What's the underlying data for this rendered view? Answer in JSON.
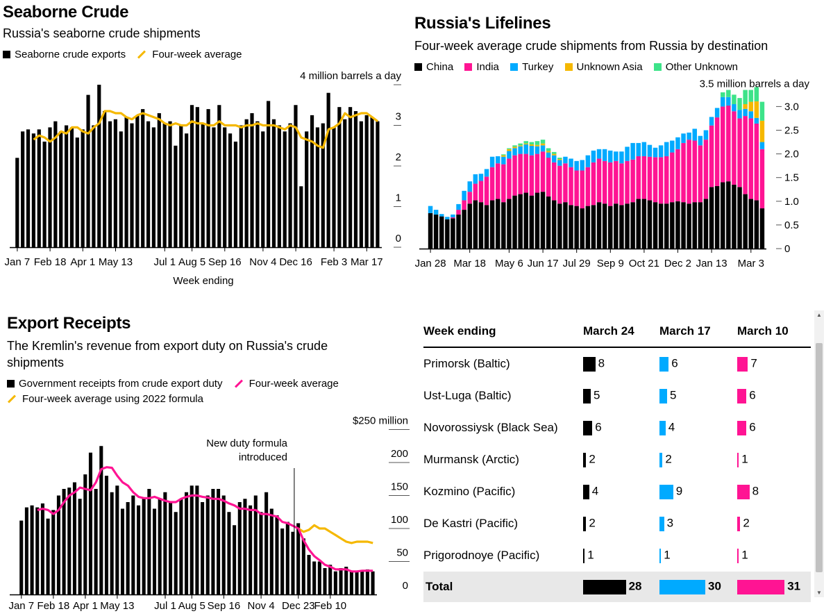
{
  "colors": {
    "black": "#000000",
    "yellow": "#f5b800",
    "magenta": "#ff1493",
    "blue": "#00aaff",
    "unknown_asia": "#f5b800",
    "other_unknown": "#3de389",
    "axis": "#555555"
  },
  "seaborne": {
    "title": "Seaborne Crude",
    "subtitle": "Russia's seaborne crude shipments",
    "legend_bar": "Seaborne crude exports",
    "legend_line": "Four-week average",
    "xlabel": "Week ending"
  },
  "lifelines": {
    "title": "Russia's Lifelines",
    "subtitle": "Four-week average crude shipments from Russia by destination",
    "legend": [
      "China",
      "India",
      "Turkey",
      "Unknown Asia",
      "Other Unknown"
    ]
  },
  "receipts": {
    "title": "Export Receipts",
    "subtitle": "The Kremlin's revenue from export duty on Russia's crude shipments",
    "legend_bar": "Government receipts from crude export duty",
    "legend_line1": "Four-week average",
    "legend_line2": "Four-week average using 2022 formula",
    "annotation": [
      "New duty formula",
      "introduced"
    ]
  },
  "chart_data": [
    {
      "type": "bar",
      "title": "Seaborne Crude",
      "subtitle": "Russia's seaborne crude shipments",
      "xlabel": "Week ending",
      "ylabel": "million barrels a day",
      "ylim": [
        0,
        4
      ],
      "ytick_values": [
        0,
        1,
        2,
        3,
        4
      ],
      "ytick_labels": [
        "0",
        "1",
        "2",
        "3",
        "4 million barrels a day"
      ],
      "xtick_labels": [
        "Jan 7",
        "Feb 18",
        "Apr 1",
        "May 13",
        "Jul 1",
        "Aug 5",
        "Sep 16",
        "Nov 4",
        "Dec 16",
        "Feb 3",
        "Mar 17"
      ],
      "xtick_index": [
        0,
        6,
        12,
        18,
        27,
        32,
        38,
        45,
        51,
        58,
        64
      ],
      "series": [
        {
          "name": "Seaborne crude exports",
          "values": [
            2.2,
            2.85,
            2.9,
            2.8,
            2.9,
            2.6,
            2.95,
            3.1,
            2.85,
            3.0,
            2.95,
            2.7,
            2.9,
            3.75,
            3.0,
            4.0,
            3.35,
            3.1,
            3.15,
            2.85,
            3.2,
            3.05,
            3.25,
            3.4,
            3.1,
            2.95,
            3.3,
            3.05,
            3.1,
            2.5,
            3.0,
            2.8,
            3.5,
            3.45,
            3.05,
            3.4,
            2.95,
            3.5,
            2.95,
            2.8,
            2.6,
            3.0,
            3.15,
            3.3,
            3.1,
            2.85,
            3.6,
            3.15,
            3.0,
            2.85,
            3.05,
            3.5,
            1.5,
            2.85,
            3.25,
            2.95,
            3.05,
            3.8,
            2.95,
            3.45,
            3.15,
            3.45,
            3.35,
            3.1,
            3.25,
            3.2,
            3.1
          ]
        },
        {
          "name": "Four-week average",
          "values": [
            null,
            null,
            null,
            2.65,
            2.75,
            2.7,
            2.6,
            2.7,
            2.85,
            2.8,
            2.95,
            2.95,
            2.85,
            2.8,
            2.95,
            3.05,
            3.35,
            3.35,
            3.3,
            3.3,
            3.2,
            3.15,
            3.25,
            3.3,
            3.25,
            3.2,
            3.15,
            3.05,
            3.0,
            3.05,
            3.0,
            3.0,
            3.1,
            3.05,
            3.05,
            3.0,
            3.0,
            3.1,
            3.0,
            3.0,
            3.0,
            2.95,
            3.0,
            3.0,
            3.05,
            3.0,
            3.0,
            3.0,
            2.95,
            2.9,
            3.0,
            2.95,
            2.7,
            2.65,
            2.6,
            2.5,
            2.45,
            2.9,
            2.95,
            3.05,
            3.3,
            3.2,
            3.25,
            3.3,
            3.3,
            3.2,
            3.1
          ]
        }
      ]
    },
    {
      "type": "bar",
      "stacked": true,
      "title": "Russia's Lifelines",
      "subtitle": "Four-week average crude shipments from Russia by destination",
      "ylabel": "million barrels a day",
      "ylim": [
        0,
        3.5
      ],
      "ytick_values": [
        0,
        0.5,
        1.0,
        1.5,
        2.0,
        2.5,
        3.0,
        3.5
      ],
      "ytick_labels": [
        "0",
        "0.5",
        "1.0",
        "1.5",
        "2.0",
        "2.5",
        "3.0",
        "3.5 million barrels a day"
      ],
      "xtick_labels": [
        "Jan 28",
        "Mar 18",
        "May 6",
        "Jun 17",
        "Jul 29",
        "Sep 9",
        "Oct 21",
        "Dec 2",
        "Jan 13",
        "Mar 3"
      ],
      "xtick_index": [
        0,
        7,
        14,
        20,
        26,
        32,
        38,
        44,
        50,
        57
      ],
      "series": [
        {
          "name": "China",
          "values": [
            0.75,
            0.72,
            0.68,
            0.62,
            0.64,
            0.72,
            0.82,
            0.95,
            1.02,
            0.98,
            0.92,
            1.02,
            1.05,
            0.98,
            1.05,
            1.12,
            1.15,
            1.18,
            1.12,
            1.18,
            1.2,
            1.1,
            1.02,
            0.95,
            0.98,
            0.92,
            0.9,
            0.85,
            0.9,
            0.92,
            0.98,
            0.95,
            0.9,
            0.95,
            0.92,
            0.95,
            0.98,
            1.05,
            1.05,
            1.02,
            0.98,
            0.95,
            0.95,
            0.98,
            1.0,
            0.98,
            0.95,
            0.98,
            0.98,
            1.05,
            1.3,
            1.32,
            1.4,
            1.42,
            1.35,
            1.3,
            1.15,
            1.05,
            1.02,
            0.85
          ]
        },
        {
          "name": "India",
          "values": [
            0,
            0,
            0,
            0,
            0.02,
            0.1,
            0.2,
            0.25,
            0.35,
            0.45,
            0.6,
            0.7,
            0.75,
            0.8,
            0.85,
            0.85,
            0.85,
            0.82,
            0.85,
            0.82,
            0.85,
            0.82,
            0.8,
            0.8,
            0.82,
            0.8,
            0.75,
            0.8,
            0.82,
            0.9,
            0.92,
            0.9,
            0.92,
            0.9,
            0.88,
            0.9,
            0.9,
            0.9,
            0.9,
            0.92,
            0.95,
            0.98,
            1.0,
            1.05,
            1.1,
            1.25,
            1.35,
            1.3,
            1.2,
            1.25,
            1.3,
            1.45,
            1.6,
            1.6,
            1.55,
            1.45,
            1.65,
            1.7,
            1.62,
            1.25
          ]
        },
        {
          "name": "Turkey",
          "values": [
            0.15,
            0.1,
            0.05,
            0.05,
            0.06,
            0.12,
            0.2,
            0.22,
            0.2,
            0.15,
            0.16,
            0.22,
            0.15,
            0.16,
            0.16,
            0.15,
            0.16,
            0.2,
            0.2,
            0.16,
            0.13,
            0.11,
            0.15,
            0.12,
            0.14,
            0.18,
            0.2,
            0.22,
            0.25,
            0.25,
            0.2,
            0.25,
            0.25,
            0.2,
            0.25,
            0.3,
            0.35,
            0.28,
            0.3,
            0.25,
            0.2,
            0.25,
            0.3,
            0.25,
            0.25,
            0.2,
            0.15,
            0.25,
            0.2,
            0.2,
            0.18,
            0.2,
            0.2,
            0.18,
            0.15,
            0.18,
            0.15,
            0.15,
            0.12,
            0.15
          ]
        },
        {
          "name": "Unknown Asia",
          "values": [
            0,
            0,
            0,
            0,
            0,
            0,
            0,
            0,
            0,
            0,
            0,
            0,
            0,
            0.03,
            0.04,
            0.03,
            0.02,
            0.02,
            0.03,
            0.03,
            0.04,
            0.03,
            0.03,
            0.02,
            0,
            0,
            0,
            0,
            0,
            0,
            0,
            0,
            0,
            0,
            0,
            0,
            0,
            0,
            0,
            0,
            0,
            0,
            0,
            0,
            0,
            0,
            0,
            0,
            0,
            0,
            0,
            0,
            0,
            0,
            0,
            0,
            0.1,
            0.2,
            0.35,
            0.45
          ]
        },
        {
          "name": "Other Unknown",
          "values": [
            0,
            0,
            0,
            0,
            0,
            0,
            0,
            0,
            0,
            0,
            0,
            0,
            0,
            0.02,
            0.02,
            0.03,
            0.04,
            0.05,
            0.05,
            0.08,
            0.08,
            0.06,
            0.04,
            0.03,
            0,
            0,
            0,
            0,
            0,
            0,
            0,
            0,
            0,
            0,
            0,
            0,
            0,
            0,
            0,
            0,
            0,
            0,
            0,
            0,
            0,
            0,
            0,
            0,
            0,
            0,
            0,
            0,
            0.1,
            0.15,
            0.2,
            0.25,
            0.3,
            0.25,
            0.3,
            0.4
          ]
        }
      ]
    },
    {
      "type": "bar",
      "title": "Export Receipts",
      "subtitle": "The Kremlin's revenue from export duty on Russia's crude shipments",
      "ylabel": "$ million",
      "ylim": [
        0,
        250
      ],
      "ytick_values": [
        0,
        50,
        100,
        150,
        200,
        250
      ],
      "ytick_labels": [
        "0",
        "50",
        "100",
        "150",
        "200",
        "$250 million"
      ],
      "xtick_labels": [
        "Jan 7",
        "Feb 18",
        "Apr 1",
        "May 13",
        "Jul 1",
        "Aug 5",
        "Sep 16",
        "Nov 4",
        "Dec 23",
        "Feb 10"
      ],
      "xtick_index": [
        0,
        6,
        12,
        18,
        27,
        32,
        38,
        45,
        52,
        58
      ],
      "annotation": {
        "text": "New duty formula introduced",
        "at_index": 52
      },
      "series": [
        {
          "name": "Government receipts from crude export duty",
          "values": [
            112,
            132,
            135,
            132,
            138,
            115,
            128,
            150,
            160,
            162,
            170,
            145,
            182,
            215,
            160,
            225,
            180,
            155,
            165,
            130,
            140,
            150,
            135,
            145,
            160,
            130,
            145,
            155,
            140,
            125,
            145,
            155,
            165,
            165,
            140,
            150,
            160,
            160,
            150,
            125,
            105,
            140,
            145,
            135,
            150,
            125,
            155,
            130,
            120,
            100,
            110,
            95,
            108,
            85,
            60,
            50,
            50,
            40,
            45,
            35,
            40,
            42,
            35,
            35,
            35,
            38,
            35
          ]
        },
        {
          "name": "Four-week average",
          "values": [
            null,
            null,
            null,
            128,
            130,
            128,
            122,
            128,
            140,
            150,
            155,
            162,
            160,
            158,
            170,
            190,
            193,
            192,
            180,
            170,
            165,
            155,
            148,
            146,
            146,
            148,
            145,
            142,
            140,
            140,
            145,
            148,
            150,
            150,
            148,
            147,
            145,
            145,
            142,
            138,
            135,
            130,
            130,
            128,
            128,
            122,
            122,
            120,
            118,
            110,
            108,
            104,
            100,
            82,
            68,
            58,
            52,
            45,
            42,
            38,
            38,
            38,
            35,
            35,
            36,
            36,
            36
          ]
        },
        {
          "name": "Four-week average using 2022 formula",
          "values": [
            null,
            null,
            null,
            null,
            null,
            null,
            null,
            null,
            null,
            null,
            null,
            null,
            null,
            null,
            null,
            null,
            null,
            null,
            null,
            null,
            null,
            null,
            null,
            null,
            null,
            null,
            null,
            null,
            null,
            null,
            null,
            null,
            null,
            null,
            null,
            null,
            null,
            null,
            null,
            null,
            null,
            null,
            null,
            null,
            null,
            null,
            null,
            null,
            null,
            null,
            null,
            null,
            100,
            95,
            98,
            105,
            100,
            100,
            95,
            90,
            85,
            80,
            78,
            80,
            80,
            80,
            78
          ]
        }
      ]
    },
    {
      "type": "table",
      "columns": [
        "Week ending",
        "March 24",
        "March 17",
        "March 10"
      ],
      "rows": [
        {
          "port": "Primorsk (Baltic)",
          "values": [
            8,
            6,
            7
          ]
        },
        {
          "port": "Ust-Luga (Baltic)",
          "values": [
            5,
            5,
            6
          ]
        },
        {
          "port": "Novorossiysk (Black Sea)",
          "values": [
            6,
            4,
            6
          ]
        },
        {
          "port": "Murmansk (Arctic)",
          "values": [
            2,
            2,
            1
          ]
        },
        {
          "port": "Kozmino (Pacific)",
          "values": [
            4,
            9,
            8
          ]
        },
        {
          "port": "De Kastri (Pacific)",
          "values": [
            2,
            3,
            2
          ]
        },
        {
          "port": "Prigorodnoye (Pacific)",
          "values": [
            1,
            1,
            1
          ]
        }
      ],
      "total_label": "Total",
      "totals": [
        28,
        30,
        31
      ]
    }
  ]
}
